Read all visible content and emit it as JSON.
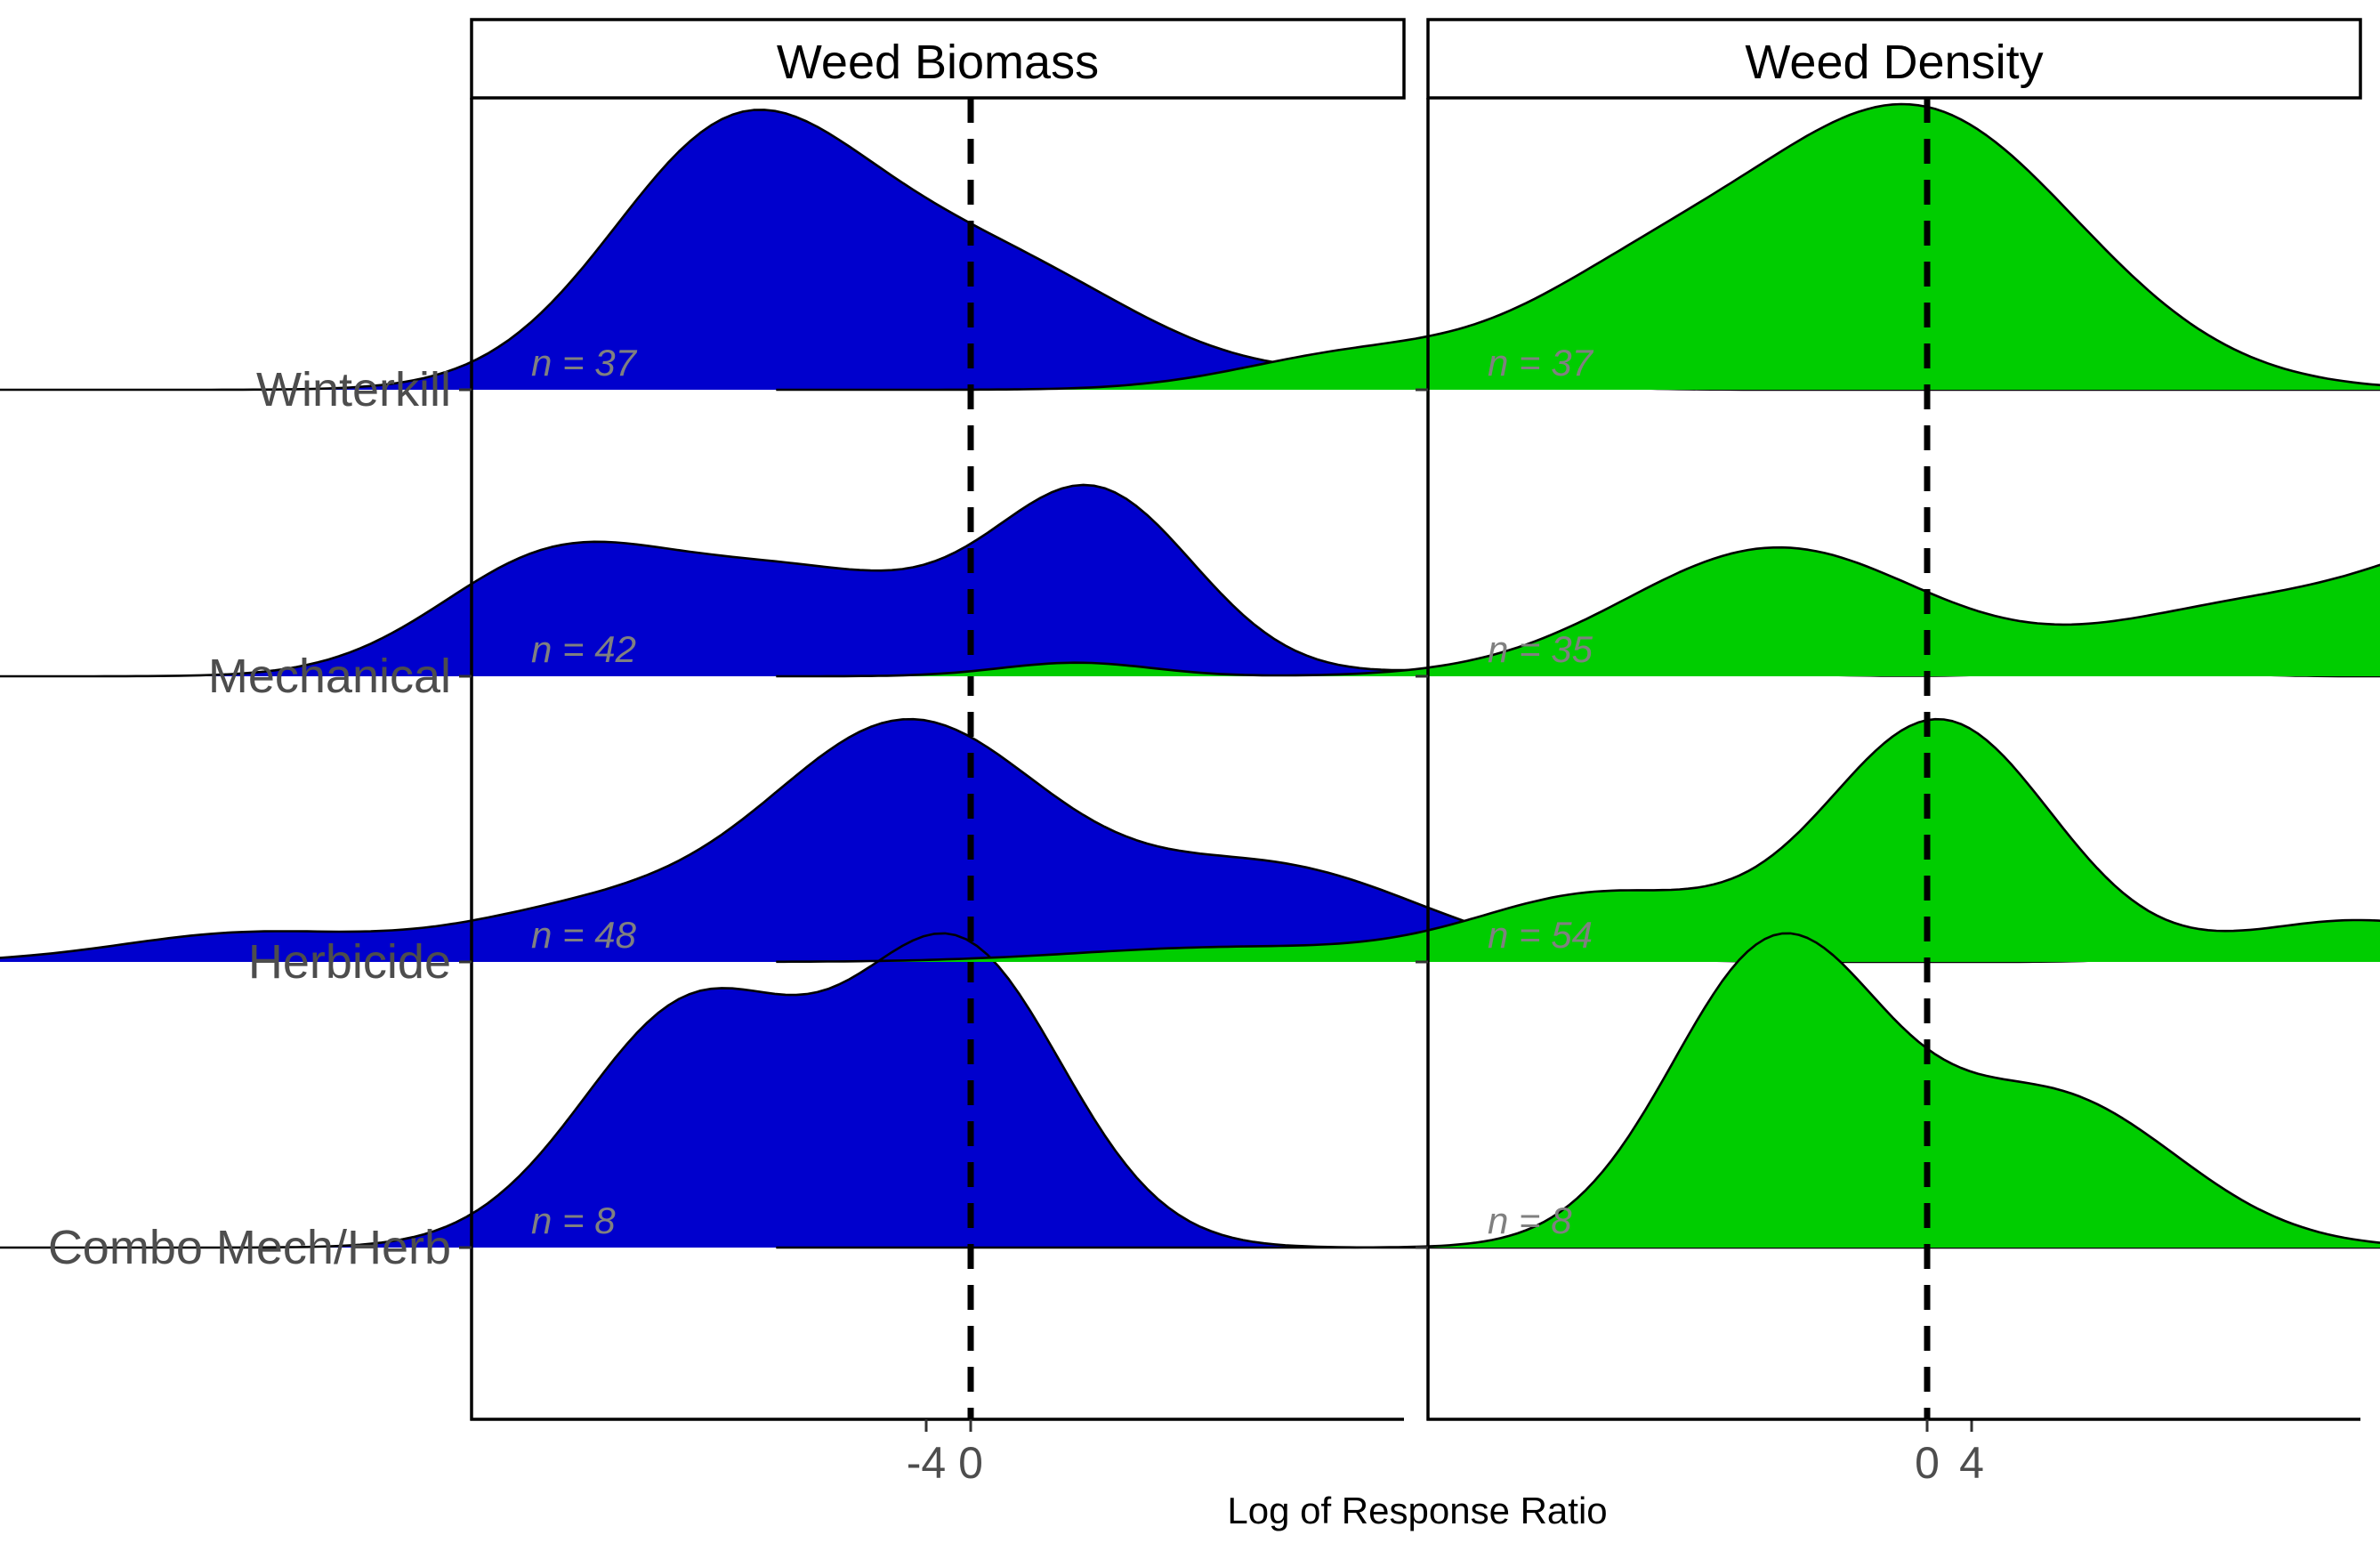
{
  "chart_data": {
    "type": "area",
    "subtype": "ridgeline-density",
    "xlabel": "Log of Response Ratio",
    "ylabel": "",
    "xlim": [
      -8,
      7.6
    ],
    "xticks": [
      "-4",
      "0",
      "4"
    ],
    "xtick_values": [
      -4,
      0,
      4
    ],
    "reference_line": {
      "x": 0,
      "style": "dashed",
      "color": "#000000"
    },
    "categories": [
      "Winterkill",
      "Mechanical",
      "Herbicide",
      "Combo Mech/Herb"
    ],
    "panels": [
      {
        "title": "Weed Biomass",
        "fill_color": "#0000cd",
        "x_range": [
          -7.2,
          6.4
        ],
        "ridges": [
          {
            "category": "Winterkill",
            "n_label": "n = 37",
            "peaks": [
              {
                "mu": -0.95,
                "sigma": 0.5,
                "a": 1.0
              },
              {
                "mu": 0.05,
                "sigma": 0.6,
                "a": 0.52
              },
              {
                "mu": 1.7,
                "sigma": 0.45,
                "a": 0.06
              }
            ],
            "peak_height": 0.98
          },
          {
            "category": "Mechanical",
            "n_label": "n = 42",
            "peaks": [
              {
                "mu": -1.7,
                "sigma": 0.45,
                "a": 0.55
              },
              {
                "mu": -0.7,
                "sigma": 0.6,
                "a": 0.55
              },
              {
                "mu": 0.5,
                "sigma": 0.4,
                "a": 0.95
              },
              {
                "mu": 2.4,
                "sigma": 0.5,
                "a": 0.06
              },
              {
                "mu": -6.1,
                "sigma": 0.3,
                "a": 0.045
              },
              {
                "mu": 4.6,
                "sigma": 0.3,
                "a": 0.045
              }
            ],
            "peak_height": 0.67
          },
          {
            "category": "Herbicide",
            "n_label": "n = 48",
            "peaks": [
              {
                "mu": -0.25,
                "sigma": 0.55,
                "a": 1.0
              },
              {
                "mu": 1.2,
                "sigma": 0.6,
                "a": 0.4
              },
              {
                "mu": -1.5,
                "sigma": 0.55,
                "a": 0.22
              },
              {
                "mu": -2.9,
                "sigma": 0.5,
                "a": 0.12
              },
              {
                "mu": 5.1,
                "sigma": 0.3,
                "a": 0.045
              }
            ],
            "peak_height": 0.85
          },
          {
            "category": "Combo Mech/Herb",
            "n_label": "n = 8",
            "peaks": [
              {
                "mu": -1.1,
                "sigma": 0.45,
                "a": 0.82
              },
              {
                "mu": -0.05,
                "sigma": 0.42,
                "a": 1.0
              }
            ],
            "peak_height": 1.1
          }
        ]
      },
      {
        "title": "Weed Density",
        "fill_color": "#00cd00",
        "x_range": [
          -4.6,
          6.3
        ],
        "ridges": [
          {
            "category": "Winterkill",
            "n_label": "n = 37",
            "peaks": [
              {
                "mu": -0.05,
                "sigma": 0.65,
                "a": 1.0
              },
              {
                "mu": -1.2,
                "sigma": 0.5,
                "a": 0.3
              },
              {
                "mu": -2.3,
                "sigma": 0.45,
                "a": 0.12
              }
            ],
            "peak_height": 1.0
          },
          {
            "category": "Mechanical",
            "n_label": "n = 35",
            "peaks": [
              {
                "mu": -0.6,
                "sigma": 0.6,
                "a": 0.85
              },
              {
                "mu": 1.3,
                "sigma": 0.6,
                "a": 0.45
              },
              {
                "mu": 2.4,
                "sigma": 0.5,
                "a": 0.85
              },
              {
                "mu": -3.4,
                "sigma": 0.3,
                "a": 0.09
              },
              {
                "mu": 5.0,
                "sigma": 0.3,
                "a": 0.09
              }
            ],
            "peak_height": 0.5
          },
          {
            "category": "Herbicide",
            "n_label": "n = 54",
            "peaks": [
              {
                "mu": 0.05,
                "sigma": 0.45,
                "a": 1.0
              },
              {
                "mu": -1.3,
                "sigma": 0.5,
                "a": 0.28
              },
              {
                "mu": 1.7,
                "sigma": 0.45,
                "a": 0.16
              },
              {
                "mu": 3.3,
                "sigma": 0.9,
                "a": 0.06
              },
              {
                "mu": -2.8,
                "sigma": 0.6,
                "a": 0.06
              }
            ],
            "peak_height": 0.85
          },
          {
            "category": "Combo Mech/Herb",
            "n_label": "n = 8",
            "peaks": [
              {
                "mu": -0.6,
                "sigma": 0.42,
                "a": 1.0
              },
              {
                "mu": 0.5,
                "sigma": 0.5,
                "a": 0.5
              }
            ],
            "peak_height": 1.1
          }
        ]
      }
    ],
    "grid": false,
    "legend": "none"
  }
}
